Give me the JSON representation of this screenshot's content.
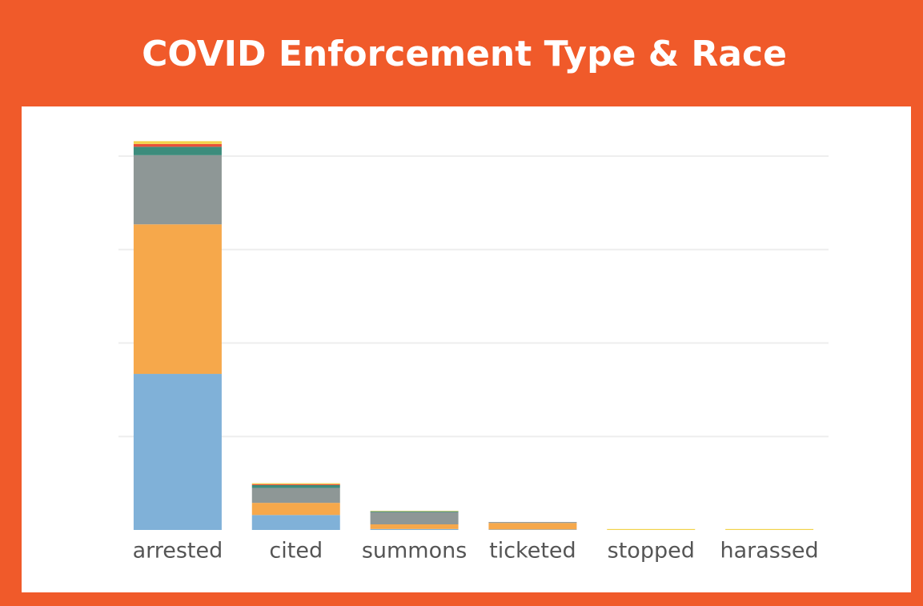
{
  "chart_data": {
    "type": "stacked_bar",
    "title": "COVID Enforcement Type & Race",
    "categories": [
      "arrested",
      "cited",
      "summons",
      "ticketed",
      "stopped",
      "harassed"
    ],
    "series": [
      {
        "color": "#80b1d8",
        "values": [
          167,
          16,
          1,
          0.5,
          0,
          0
        ]
      },
      {
        "color": "#f6a84b",
        "values": [
          160,
          13,
          5,
          7,
          0,
          0
        ]
      },
      {
        "color": "#8e9796",
        "values": [
          74,
          16,
          13,
          1,
          0,
          0
        ]
      },
      {
        "color": "#3c8c7c",
        "values": [
          9,
          3,
          1,
          0,
          0,
          0
        ]
      },
      {
        "color": "#e8503a",
        "values": [
          3,
          1,
          0,
          0,
          0,
          0
        ]
      },
      {
        "color": "#f2d24a",
        "values": [
          3,
          1,
          0.5,
          0,
          1,
          1
        ]
      }
    ],
    "ylim": [
      0,
      430
    ],
    "gridlines": [
      100,
      200,
      300,
      400
    ],
    "grid": true
  }
}
